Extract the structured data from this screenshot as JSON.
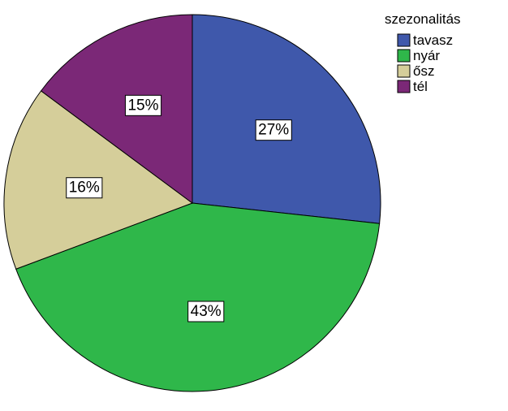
{
  "chart_data": {
    "type": "pie",
    "legend_title": "szezonalitás",
    "legend_position": "top-right",
    "categories": [
      "tavasz",
      "nyár",
      "ősz",
      "tél"
    ],
    "values": [
      27,
      43,
      16,
      15
    ],
    "labels": [
      "27%",
      "43%",
      "16%",
      "15%"
    ],
    "colors": [
      "#3F58AB",
      "#2FB74A",
      "#D5CE9A",
      "#7B2877"
    ]
  }
}
